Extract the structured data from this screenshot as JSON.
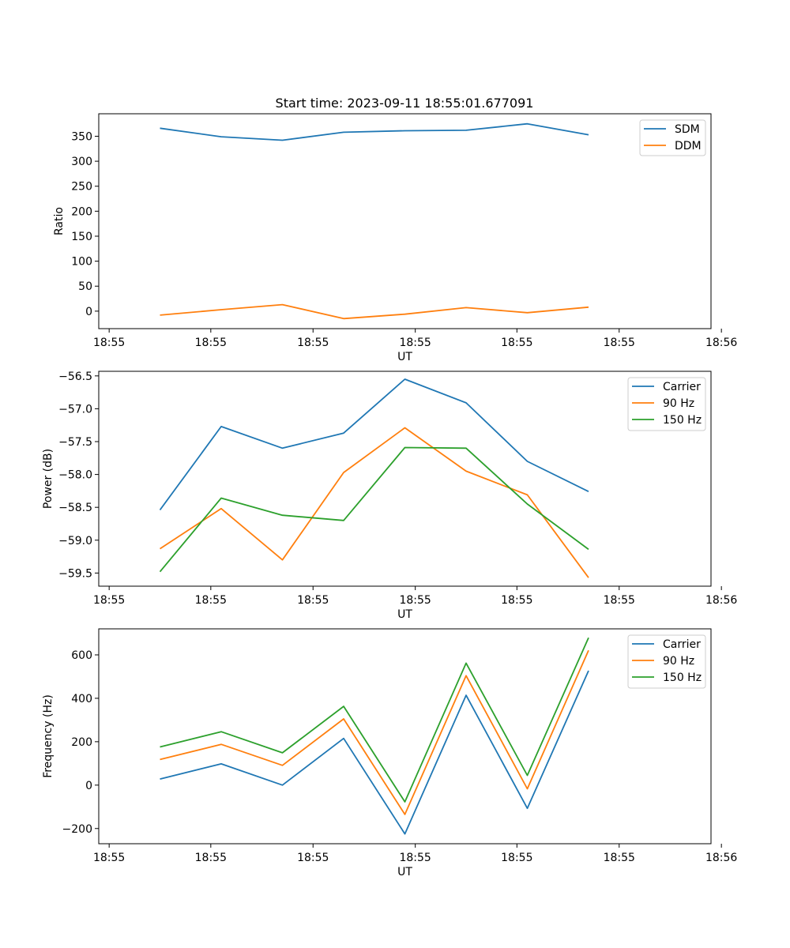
{
  "figure_title": "Start time: 2023-09-11 18:55:01.677091",
  "colors": {
    "blue": "#1f77b4",
    "orange": "#ff7f0e",
    "green": "#2ca02c"
  },
  "chart_data": [
    {
      "type": "line",
      "title": "Start time: 2023-09-11 18:55:01.677091",
      "xlabel": "UT",
      "ylabel": "Ratio",
      "xlim": [
        -0.5,
        9.5
      ],
      "x": [
        0.5,
        1.5,
        2.5,
        3.5,
        4.5,
        5.5,
        6.5,
        7.5
      ],
      "x_ticks": [
        -0.33,
        1.33,
        3.0,
        4.67,
        6.33,
        8.0,
        9.67
      ],
      "x_tick_labels": [
        "18:55",
        "18:55",
        "18:55",
        "18:55",
        "18:55",
        "18:55",
        "18:56"
      ],
      "ylim": [
        -35,
        395
      ],
      "y_ticks": [
        0,
        50,
        100,
        150,
        200,
        250,
        300,
        350
      ],
      "y_tick_labels": [
        "0",
        "50",
        "100",
        "150",
        "200",
        "250",
        "300",
        "350"
      ],
      "legend_position": "top-right",
      "series": [
        {
          "name": "SDM",
          "color": "#1f77b4",
          "values": [
            366,
            349,
            342,
            358,
            361,
            362,
            375,
            353
          ]
        },
        {
          "name": "DDM",
          "color": "#ff7f0e",
          "values": [
            -8,
            3,
            13,
            -15,
            -6,
            7,
            -3,
            8
          ]
        }
      ]
    },
    {
      "type": "line",
      "xlabel": "UT",
      "ylabel": "Power (dB)",
      "xlim": [
        -0.5,
        9.5
      ],
      "x": [
        0.5,
        1.5,
        2.5,
        3.5,
        4.5,
        5.5,
        6.5,
        7.5
      ],
      "x_ticks": [
        -0.33,
        1.33,
        3.0,
        4.67,
        6.33,
        8.0,
        9.67
      ],
      "x_tick_labels": [
        "18:55",
        "18:55",
        "18:55",
        "18:55",
        "18:55",
        "18:55",
        "18:56"
      ],
      "ylim": [
        -59.7,
        -56.43
      ],
      "y_ticks": [
        -59.5,
        -59.0,
        -58.5,
        -58.0,
        -57.5,
        -57.0,
        -56.5
      ],
      "y_tick_labels": [
        "−59.5",
        "−59.0",
        "−58.5",
        "−58.0",
        "−57.5",
        "−57.0",
        "−56.5"
      ],
      "legend_position": "top-right",
      "series": [
        {
          "name": "Carrier",
          "color": "#1f77b4",
          "values": [
            -58.54,
            -57.27,
            -57.6,
            -57.37,
            -56.55,
            -56.91,
            -57.8,
            -58.26
          ]
        },
        {
          "name": "90 Hz",
          "color": "#ff7f0e",
          "values": [
            -59.13,
            -58.52,
            -59.3,
            -57.97,
            -57.29,
            -57.95,
            -58.31,
            -59.57
          ]
        },
        {
          "name": "150 Hz",
          "color": "#2ca02c",
          "values": [
            -59.48,
            -58.36,
            -58.62,
            -58.7,
            -57.59,
            -57.6,
            -58.45,
            -59.14
          ]
        }
      ]
    },
    {
      "type": "line",
      "xlabel": "UT",
      "ylabel": "Frequency (Hz)",
      "xlim": [
        -0.5,
        9.5
      ],
      "x": [
        0.5,
        1.5,
        2.5,
        3.5,
        4.5,
        5.5,
        6.5,
        7.5
      ],
      "x_ticks": [
        -0.33,
        1.33,
        3.0,
        4.67,
        6.33,
        8.0,
        9.67
      ],
      "x_tick_labels": [
        "18:55",
        "18:55",
        "18:55",
        "18:55",
        "18:55",
        "18:55",
        "18:56"
      ],
      "ylim": [
        -270,
        720
      ],
      "y_ticks": [
        -200,
        0,
        200,
        400,
        600
      ],
      "y_tick_labels": [
        "−200",
        "0",
        "200",
        "400",
        "600"
      ],
      "legend_position": "top-right",
      "series": [
        {
          "name": "Carrier",
          "color": "#1f77b4",
          "values": [
            28,
            98,
            0,
            215,
            -225,
            414,
            -107,
            527
          ]
        },
        {
          "name": "90 Hz",
          "color": "#ff7f0e",
          "values": [
            118,
            188,
            91,
            305,
            -135,
            504,
            -17,
            621
          ]
        },
        {
          "name": "150 Hz",
          "color": "#2ca02c",
          "values": [
            176,
            246,
            149,
            363,
            -77,
            562,
            45,
            679
          ]
        }
      ]
    }
  ]
}
